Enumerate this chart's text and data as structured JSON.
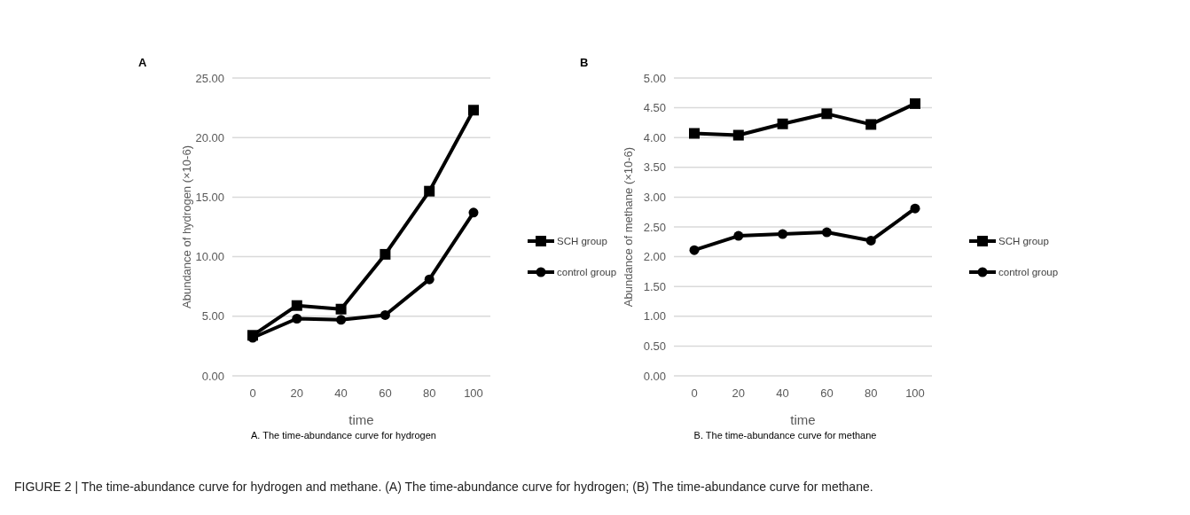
{
  "chart_data": [
    {
      "type": "line",
      "title": "A",
      "xlabel": "time",
      "ylabel": "Abundance of hydrogen (×10-6)",
      "categories": [
        "0",
        "20",
        "40",
        "60",
        "80",
        "100"
      ],
      "series": [
        {
          "name": "SCH group",
          "color": "#000000",
          "marker": "square",
          "values": [
            3.4,
            5.9,
            5.6,
            10.2,
            15.5,
            22.3
          ]
        },
        {
          "name": "control group",
          "color": "#000000",
          "marker": "circle",
          "values": [
            3.2,
            4.8,
            4.7,
            5.1,
            8.1,
            13.7
          ]
        }
      ],
      "ylim": [
        0,
        25
      ],
      "yticks": [
        {
          "value": 0,
          "label": "0.00"
        },
        {
          "value": 5,
          "label": "5.00"
        },
        {
          "value": 10,
          "label": "10.00"
        },
        {
          "value": 15,
          "label": "15.00"
        },
        {
          "value": 20,
          "label": "20.00"
        },
        {
          "value": 25,
          "label": "25.00"
        }
      ],
      "grid": "y",
      "legend": "right",
      "line_style": "solid",
      "annotations": [
        "A. The time-abundance curve for hydrogen",
        "FIGURE 2 | The time-abundance curve for hydrogen and methane. (A) The time-abundance curve for hydrogen; (B) The time-abundance curve for methane."
      ]
    },
    {
      "type": "line",
      "title": "B",
      "xlabel": "time",
      "ylabel": "Abundance of methane (×10-6)",
      "categories": [
        "0",
        "20",
        "40",
        "60",
        "80",
        "100"
      ],
      "series": [
        {
          "name": "SCH group",
          "color": "#000000",
          "marker": "square",
          "values": [
            4.07,
            4.04,
            4.23,
            4.4,
            4.22,
            4.57
          ]
        },
        {
          "name": "control group",
          "color": "#000000",
          "marker": "circle",
          "values": [
            2.11,
            2.35,
            2.38,
            2.41,
            2.27,
            2.81
          ]
        }
      ],
      "ylim": [
        0,
        5
      ],
      "yticks": [
        {
          "value": 0,
          "label": "0.00"
        },
        {
          "value": 0.5,
          "label": "0.50"
        },
        {
          "value": 1,
          "label": "1.00"
        },
        {
          "value": 1.5,
          "label": "1.50"
        },
        {
          "value": 2,
          "label": "2.00"
        },
        {
          "value": 2.5,
          "label": "2.50"
        },
        {
          "value": 3,
          "label": "3.00"
        },
        {
          "value": 3.5,
          "label": "3.50"
        },
        {
          "value": 4,
          "label": "4.00"
        },
        {
          "value": 4.5,
          "label": "4.50"
        },
        {
          "value": 5,
          "label": "5.00"
        }
      ],
      "grid": "y",
      "legend": "right",
      "line_style": "solid",
      "annotations": [
        "B. The time-abundance curve for methane"
      ]
    }
  ]
}
